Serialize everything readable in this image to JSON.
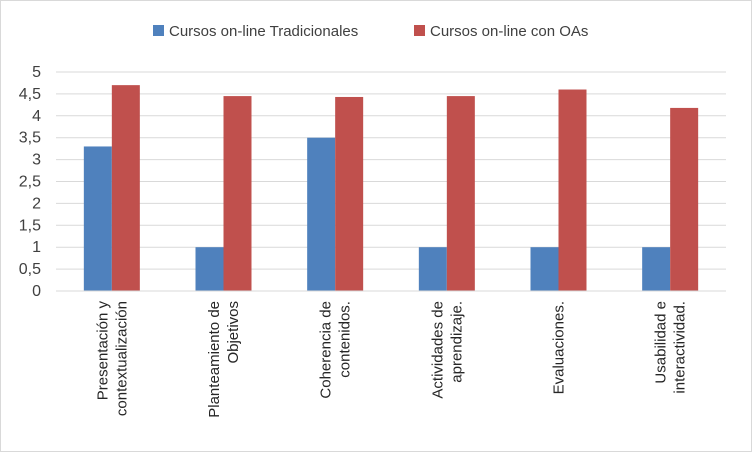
{
  "chart_data": {
    "type": "bar",
    "categories": [
      [
        "Presentación y",
        "contextualización"
      ],
      [
        "Planteamiento de",
        "Objetivos"
      ],
      [
        "Coherencia de",
        "contenidos."
      ],
      [
        "Actividades de",
        "aprendizaje."
      ],
      [
        "Evaluaciones."
      ],
      [
        "Usabilidad e",
        "interactividad."
      ]
    ],
    "series": [
      {
        "name": "Cursos on-line Tradicionales",
        "color": "#4f81bd",
        "values": [
          3.3,
          1,
          3.5,
          1,
          1,
          1
        ]
      },
      {
        "name": "Cursos on-line con OAs",
        "color": "#c0504d",
        "values": [
          4.7,
          4.45,
          4.43,
          4.45,
          4.6,
          4.18
        ]
      }
    ],
    "yticks": [
      "0",
      "0,5",
      "1",
      "1,5",
      "2",
      "2,5",
      "3",
      "3,5",
      "4",
      "4,5",
      "5"
    ],
    "ylim": [
      0,
      5
    ],
    "grid": true,
    "legend": "top-center",
    "title": "",
    "xlabel": "",
    "ylabel": ""
  }
}
